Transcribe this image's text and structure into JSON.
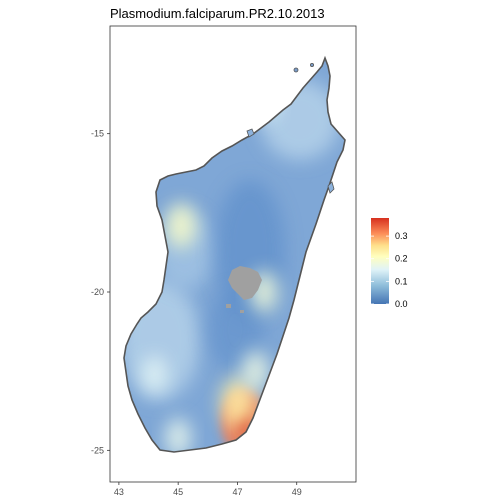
{
  "title": "Plasmodium.falciparum.PR2.10.2013",
  "axes": {
    "x_ticks": [
      "43",
      "45",
      "47",
      "49"
    ],
    "y_ticks": [
      "-15",
      "-20",
      "-25"
    ]
  },
  "legend": {
    "ticks": [
      "0.3",
      "0.2",
      "0.1",
      "0.0"
    ],
    "colors": [
      "#d7301f",
      "#fc8d59",
      "#fee08b",
      "#ffffbf",
      "#e0f3f8",
      "#91bfdb",
      "#4575b4"
    ],
    "placement": "right"
  },
  "map": {
    "land_base_color": "#7fa7d6",
    "missing_color": "#a0a0a0",
    "outline_color": "#555555"
  },
  "chart_data": {
    "type": "heatmap",
    "title": "Plasmodium.falciparum.PR2.10.2013",
    "xlabel": "",
    "ylabel": "",
    "xlim": [
      42.7,
      51.0
    ],
    "ylim": [
      -26.0,
      -11.6
    ],
    "x_ticks": [
      43,
      45,
      47,
      49
    ],
    "y_ticks": [
      -15,
      -20,
      -25
    ],
    "color_scale": {
      "min": 0.0,
      "max": 0.38,
      "ticks": [
        0.0,
        0.1,
        0.2,
        0.3
      ]
    },
    "hotspots": [
      {
        "lon": 47.2,
        "lat": -24.1,
        "value": 0.33
      },
      {
        "lon": 47.0,
        "lat": -23.5,
        "value": 0.22
      },
      {
        "lon": 45.1,
        "lat": -17.9,
        "value": 0.18
      },
      {
        "lon": 44.2,
        "lat": -22.6,
        "value": 0.13
      },
      {
        "lon": 45.0,
        "lat": -24.6,
        "value": 0.14
      },
      {
        "lon": 47.9,
        "lat": -20.0,
        "value": 0.16
      },
      {
        "lon": 47.6,
        "lat": -22.5,
        "value": 0.15
      },
      {
        "lon": 48.0,
        "lat": -14.0,
        "value": 0.12
      }
    ]
  }
}
